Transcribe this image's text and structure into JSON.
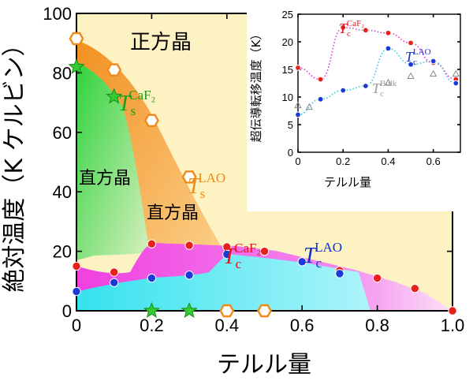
{
  "chart_data": [
    {
      "type": "scatter",
      "xlabel": "テルル量",
      "ylabel": "絶対温度（K ケルビン）",
      "xlim": [
        0,
        1.0
      ],
      "ylim": [
        0,
        100
      ],
      "xticks": [
        "0",
        "0.2",
        "0.4",
        "0.6",
        "0.8",
        "1.0"
      ],
      "yticks": [
        "0",
        "20",
        "40",
        "60",
        "80",
        "100"
      ],
      "grid": false,
      "regions": [
        {
          "name": "tetragonal",
          "label": "正方晶",
          "color": "#fdf2c2"
        },
        {
          "name": "orthorhombic-caf2",
          "label": "直方晶",
          "color": "#3dd64a"
        },
        {
          "name": "orthorhombic-lao",
          "label": "直方晶",
          "color": "#f7a038"
        },
        {
          "name": "sc-caf2",
          "label": "",
          "color": "#f055e8"
        },
        {
          "name": "sc-lao",
          "label": "",
          "color": "#4ae8f0"
        }
      ],
      "series": [
        {
          "name": "Ts CaF2",
          "label": {
            "main": "T",
            "sub": "s",
            "sup": "CaF₂",
            "color": "#1aa01a"
          },
          "marker": "star",
          "color": "#33cc33",
          "points": [
            [
              0.0,
              82
            ],
            [
              0.1,
              72
            ],
            [
              0.2,
              0
            ],
            [
              0.3,
              0
            ]
          ]
        },
        {
          "name": "Ts LAO",
          "label": {
            "main": "T",
            "sub": "s",
            "sup": "LAO",
            "color": "#f08a18"
          },
          "marker": "hexagon-open",
          "color": "#f08a18",
          "points": [
            [
              0.0,
              91.5
            ],
            [
              0.1,
              81
            ],
            [
              0.2,
              64
            ],
            [
              0.3,
              45
            ],
            [
              0.4,
              0
            ],
            [
              0.5,
              0
            ]
          ]
        },
        {
          "name": "Tc CaF2",
          "label": {
            "main": "T",
            "sub": "c",
            "sup": "CaF₂",
            "color": "#e8101a"
          },
          "marker": "circle",
          "color": "#e8201a",
          "points": [
            [
              0.0,
              15
            ],
            [
              0.1,
              13
            ],
            [
              0.2,
              22.5
            ],
            [
              0.3,
              22
            ],
            [
              0.4,
              21.5
            ],
            [
              0.5,
              20
            ],
            [
              0.6,
              16.5
            ],
            [
              0.7,
              13.5
            ],
            [
              0.8,
              11
            ],
            [
              0.9,
              7.5
            ],
            [
              1.0,
              0
            ]
          ]
        },
        {
          "name": "Tc LAO",
          "label": {
            "main": "T",
            "sub": "c",
            "sup": "LAO",
            "color": "#1030d0"
          },
          "marker": "circle",
          "color": "#1a3ad8",
          "points": [
            [
              0.0,
              6.5
            ],
            [
              0.1,
              9.5
            ],
            [
              0.2,
              11
            ],
            [
              0.3,
              12
            ],
            [
              0.4,
              19
            ],
            [
              0.6,
              16.5
            ],
            [
              0.7,
              12.5
            ]
          ]
        }
      ]
    },
    {
      "type": "scatter",
      "role": "inset",
      "xlabel": "テルル量",
      "ylabel": "超伝導転移温度（K）",
      "xlim": [
        0,
        0.72
      ],
      "ylim": [
        0,
        25
      ],
      "xticks": [
        "0",
        "0.2",
        "0.4",
        "0.6"
      ],
      "yticks": [
        "0",
        "5",
        "10",
        "15",
        "20",
        "25"
      ],
      "series": [
        {
          "name": "Tc CaF2",
          "label": {
            "main": "T",
            "sub": "c",
            "sup": "CaF₂",
            "color": "#e8101a"
          },
          "marker": "circle",
          "color": "#e8201a",
          "line": "dotted",
          "points": [
            [
              0.0,
              15.3
            ],
            [
              0.1,
              13.2
            ],
            [
              0.2,
              22.6
            ],
            [
              0.3,
              22.1
            ],
            [
              0.4,
              21.6
            ],
            [
              0.5,
              19.8
            ],
            [
              0.6,
              16.2
            ],
            [
              0.7,
              13.2
            ]
          ]
        },
        {
          "name": "Tc LAO",
          "label": {
            "main": "T",
            "sub": "c",
            "sup": "LAO",
            "color": "#1030d0"
          },
          "marker": "circle",
          "color": "#1a3ad8",
          "line": "dotted",
          "points": [
            [
              0.0,
              6.8
            ],
            [
              0.1,
              9.6
            ],
            [
              0.2,
              11.2
            ],
            [
              0.3,
              12.0
            ],
            [
              0.4,
              18.8
            ],
            [
              0.5,
              15.9
            ],
            [
              0.6,
              16.5
            ],
            [
              0.7,
              12.5
            ]
          ]
        },
        {
          "name": "Tc Bulk",
          "label": {
            "main": "T",
            "sub": "c",
            "sup": "Bulk",
            "color": "#9a9a9a"
          },
          "marker": "triangle-open",
          "color": "#8a8a8a",
          "points": [
            [
              0.0,
              8.5
            ],
            [
              0.05,
              8.2
            ],
            [
              0.4,
              12.6
            ],
            [
              0.5,
              13.8
            ],
            [
              0.6,
              14.2
            ],
            [
              0.7,
              14.2
            ]
          ]
        }
      ]
    }
  ]
}
